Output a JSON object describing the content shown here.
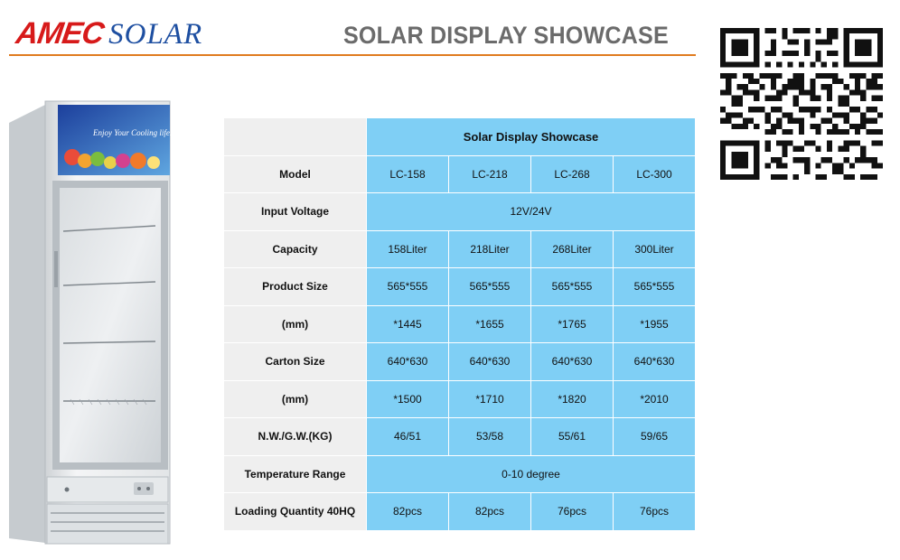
{
  "brand": {
    "part1": "AMEC",
    "part2": "SOLAR"
  },
  "header": {
    "title": "SOLAR DISPLAY SHOWCASE",
    "accent_color": "#e07b1e"
  },
  "product_image": {
    "banner_text": "Enjoy Your Cooling life......"
  },
  "colors": {
    "brand_red": "#d71a1a",
    "brand_blue": "#1e4fa1",
    "cell_blue": "#7fcff5",
    "cell_grey": "#efefef"
  },
  "table": {
    "title": "Solar Display Showcase",
    "models": [
      "LC-158",
      "LC-218",
      "LC-268",
      "LC-300"
    ],
    "labels": {
      "model": "Model",
      "input_voltage": "Input Voltage",
      "capacity": "Capacity",
      "product_size": "Product Size",
      "product_size_unit": "(mm)",
      "carton_size": "Carton Size",
      "carton_size_unit": "(mm)",
      "weight": "N.W./G.W.(KG)",
      "temperature": "Temperature Range",
      "loading": "Loading Quantity 40HQ"
    },
    "input_voltage": "12V/24V",
    "capacity": [
      "158Liter",
      "218Liter",
      "268Liter",
      "300Liter"
    ],
    "product_size_a": [
      "565*555",
      "565*555",
      "565*555",
      "565*555"
    ],
    "product_size_b": [
      "*1445",
      "*1655",
      "*1765",
      "*1955"
    ],
    "carton_size_a": [
      "640*630",
      "640*630",
      "640*630",
      "640*630"
    ],
    "carton_size_b": [
      "*1500",
      "*1710",
      "*1820",
      "*2010"
    ],
    "weight": [
      "46/51",
      "53/58",
      "55/61",
      "59/65"
    ],
    "temperature": "0-10 degree",
    "loading": [
      "82pcs",
      "82pcs",
      "76pcs",
      "76pcs"
    ]
  }
}
